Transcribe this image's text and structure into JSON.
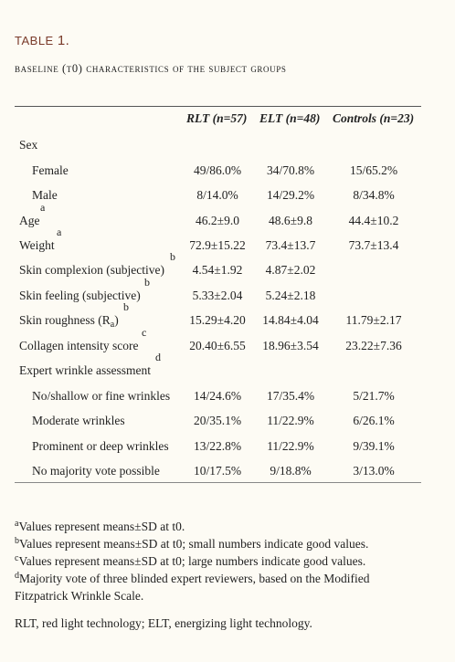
{
  "table_label": "TABLE",
  "table_number": "1.",
  "caption": "Baseline (t0) characteristics of the subject groups",
  "headers": [
    "RLT (n=57)",
    "ELT (n=48)",
    "Controls (n=23)"
  ],
  "rows": [
    {
      "label": "Sex",
      "sup": "",
      "values": [
        "",
        "",
        ""
      ]
    },
    {
      "label": "Female",
      "sup": "",
      "values": [
        "49/86.0%",
        "34/70.8%",
        "15/65.2%"
      ]
    },
    {
      "label": "Male",
      "sup": "",
      "values": [
        "8/14.0%",
        "14/29.2%",
        "8/34.8%"
      ]
    },
    {
      "label": "Age",
      "sup": "a",
      "values": [
        "46.2±9.0",
        "48.6±9.8",
        "44.4±10.2"
      ]
    },
    {
      "label": "Weight",
      "sup": "a",
      "values": [
        "72.9±15.22",
        "73.4±13.7",
        "73.7±13.4"
      ]
    },
    {
      "label": "Skin complexion (subjective)",
      "sup": "b",
      "values": [
        "4.54±1.92",
        "4.87±2.02",
        ""
      ]
    },
    {
      "label": "Skin feeling (subjective)",
      "sup": "b",
      "values": [
        "5.33±2.04",
        "5.24±2.18",
        ""
      ]
    },
    {
      "label": "Skin roughness (R",
      "label_sub": "a",
      "label_end": ")",
      "sup": "b",
      "values": [
        "15.29±4.20",
        "14.84±4.04",
        "11.79±2.17"
      ]
    },
    {
      "label": "Collagen intensity score",
      "sup": "c",
      "values": [
        "20.40±6.55",
        "18.96±3.54",
        "23.22±7.36"
      ]
    },
    {
      "label": "Expert wrinkle assessment",
      "sup": "d",
      "values": [
        "",
        "",
        ""
      ]
    },
    {
      "label": "No/shallow or fine wrinkles",
      "sup": "",
      "values": [
        "14/24.6%",
        "17/35.4%",
        "5/21.7%"
      ]
    },
    {
      "label": "Moderate wrinkles",
      "sup": "",
      "values": [
        "20/35.1%",
        "11/22.9%",
        "6/26.1%"
      ]
    },
    {
      "label": "Prominent or deep wrinkles",
      "sup": "",
      "values": [
        "13/22.8%",
        "11/22.9%",
        "9/39.1%"
      ]
    },
    {
      "label": "No majority vote possible",
      "sup": "",
      "values": [
        "10/17.5%",
        "9/18.8%",
        "3/13.0%"
      ]
    }
  ],
  "footnotes": [
    {
      "mark": "a",
      "text": "Values represent means±SD at t0."
    },
    {
      "mark": "b",
      "text": "Values represent means±SD at t0; small numbers indicate good values."
    },
    {
      "mark": "c",
      "text": "Values represent means±SD at t0; large numbers indicate good values."
    },
    {
      "mark": "d",
      "text": "Majority vote of three blinded expert reviewers, based on the Modified Fitzpatrick Wrinkle Scale."
    }
  ],
  "abbreviations": "RLT, red light technology; ELT, energizing light technology."
}
